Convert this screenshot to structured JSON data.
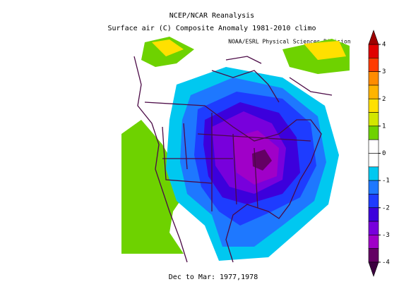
{
  "title": "NCEP/NCAR Reanalysis",
  "subtitle": "Surface air (C) Composite Anomaly 1981-2010 climo",
  "credit": "NOAA/ESRL Physical Sciences Division",
  "footer": "Dec to Mar: 1977,1978",
  "colorbar": {
    "ticks": [
      4,
      3,
      2,
      1,
      0,
      -1,
      -2,
      -3,
      -4
    ],
    "top_color": "#9e0000",
    "bottom_color": "#3c0040",
    "colors": [
      "#e00000",
      "#ff3c00",
      "#ff8c00",
      "#ffb400",
      "#ffe000",
      "#d2e600",
      "#6ed200",
      "#ffffff",
      "#ffffff",
      "#00c8f0",
      "#1e78ff",
      "#1e3cff",
      "#3c00dc",
      "#7800dc",
      "#a000c8",
      "#640064"
    ]
  }
}
